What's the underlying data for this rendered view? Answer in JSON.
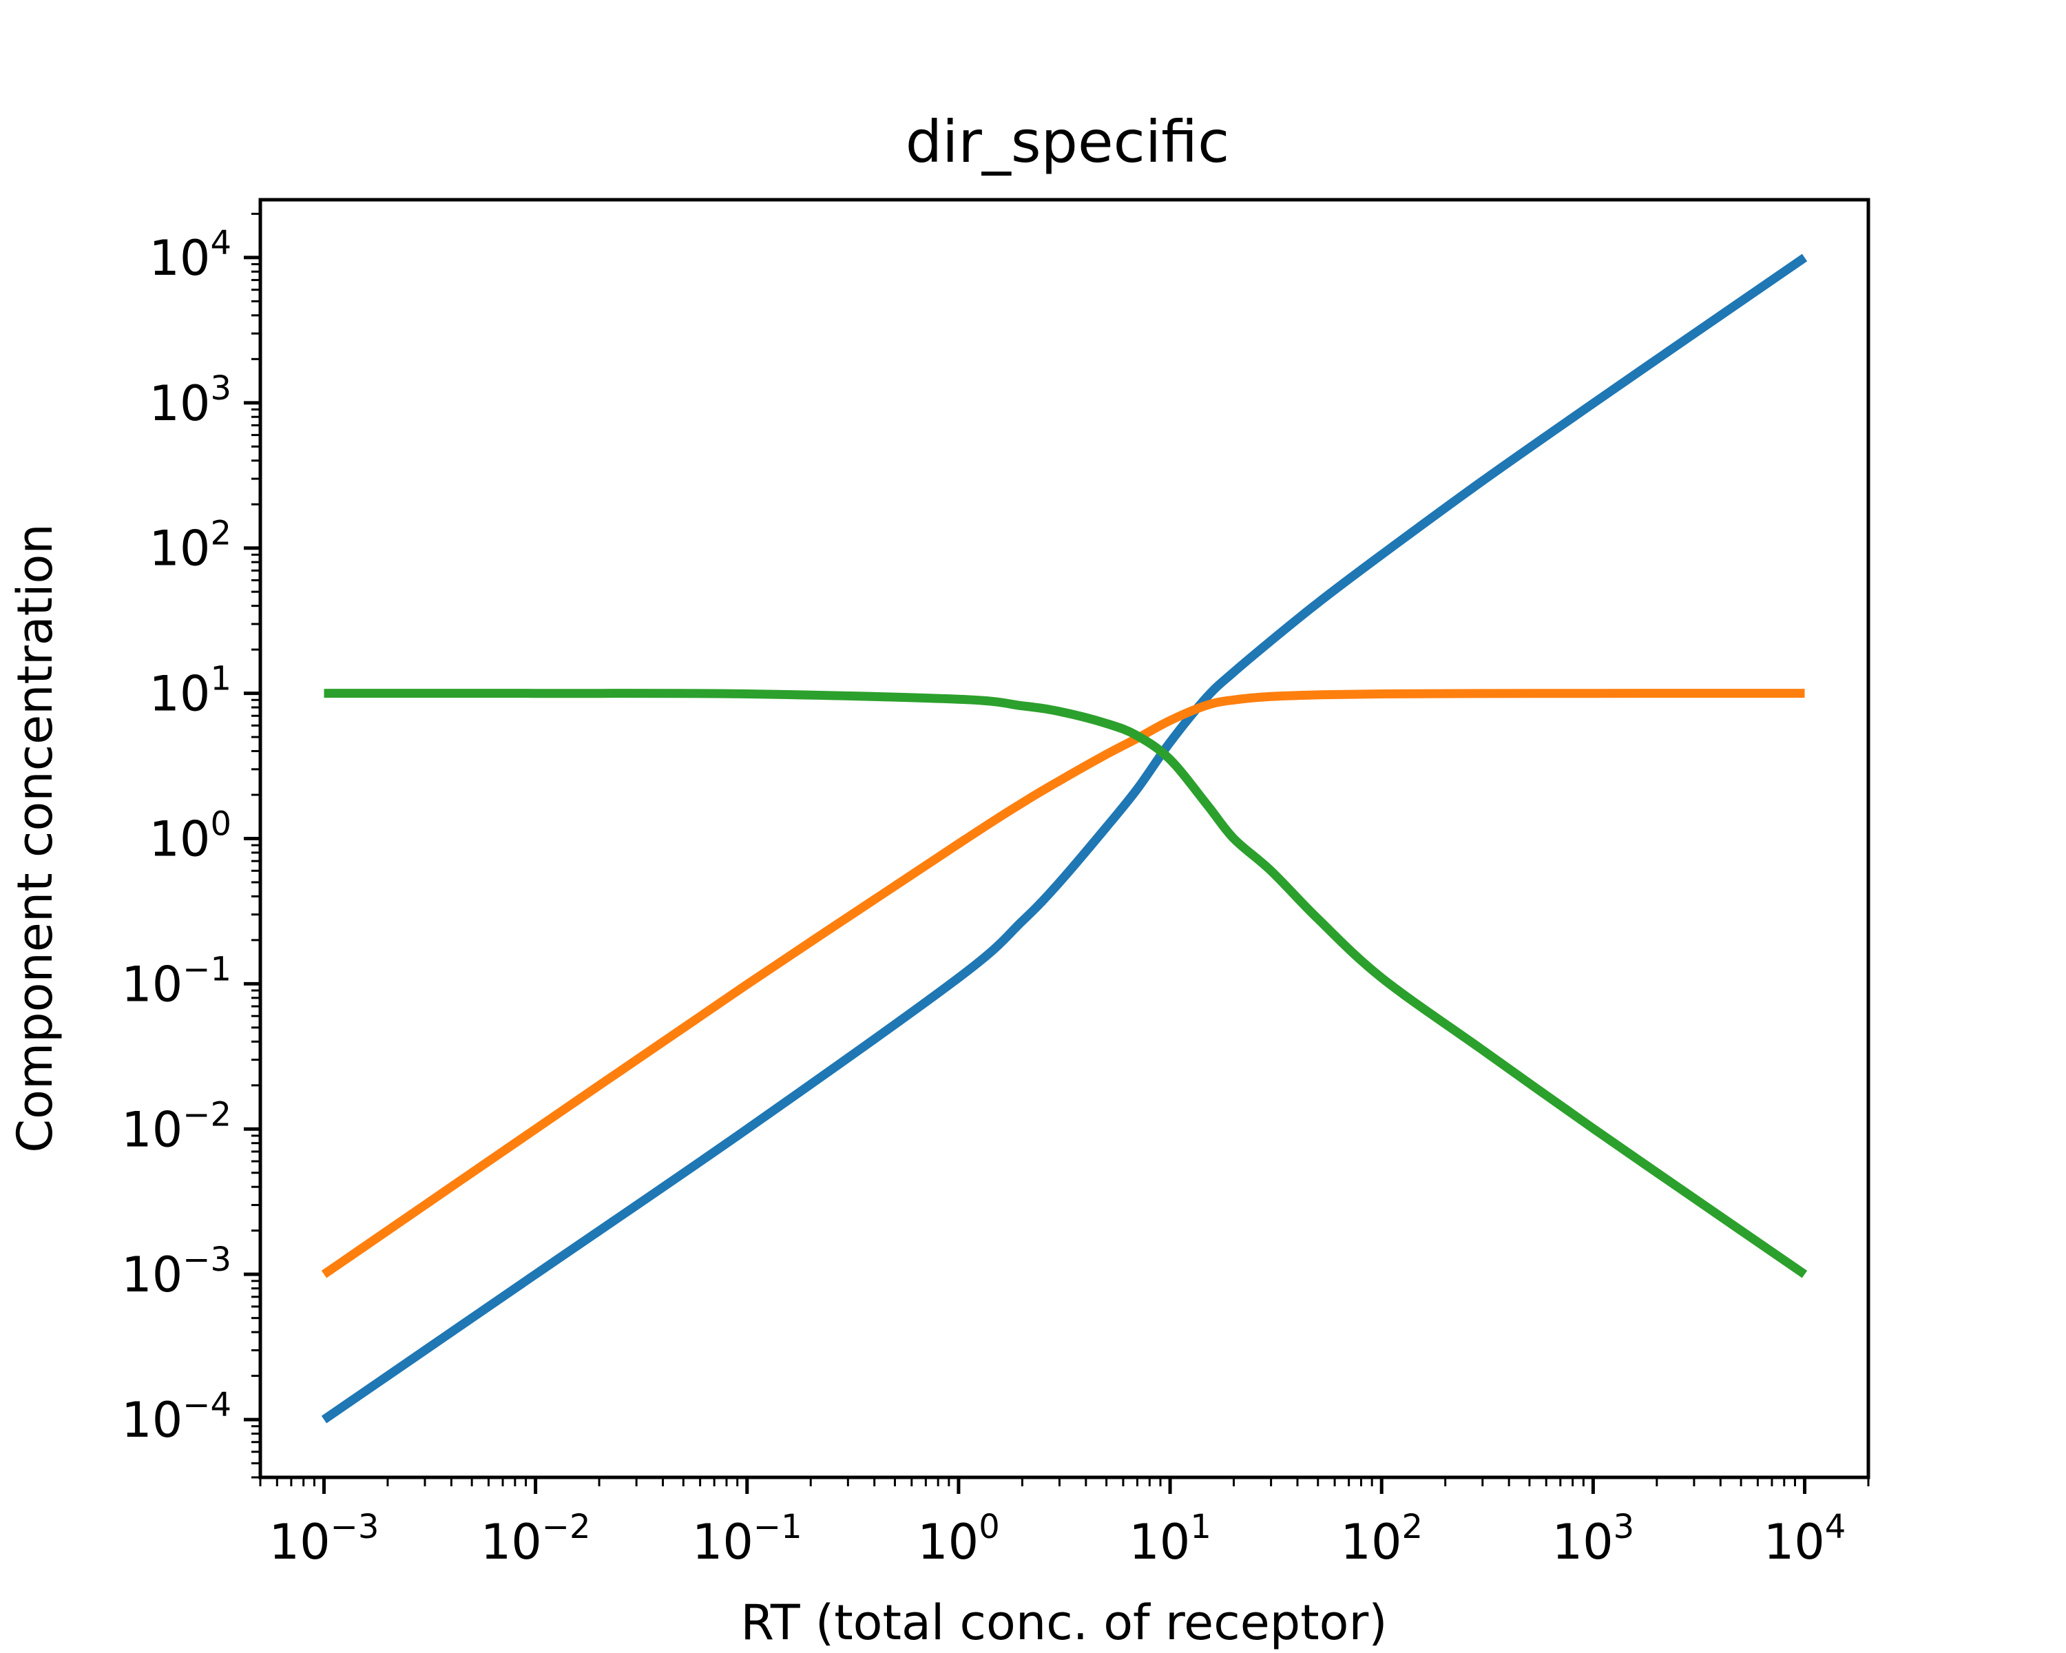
{
  "chart_data": {
    "type": "line",
    "title": "dir_specific",
    "xlabel": "RT (total conc. of receptor)",
    "ylabel": "Component concentration",
    "xscale": "log",
    "yscale": "log",
    "xlim": [
      0.0005,
      20000
    ],
    "ylim": [
      4e-05,
      25000
    ],
    "x_tick_exponents": [
      -3,
      -2,
      -1,
      0,
      1,
      2,
      3,
      4
    ],
    "y_tick_exponents": [
      -4,
      -3,
      -2,
      -1,
      0,
      1,
      2,
      3,
      4
    ],
    "tick_base": "10",
    "grid": false,
    "legend": false,
    "x": [
      0.001,
      0.01,
      0.1,
      1,
      2,
      3,
      5,
      7,
      10,
      15,
      20,
      30,
      50,
      100,
      300,
      1000,
      3000,
      10000
    ],
    "series": [
      {
        "color": "#1f77b4",
        "values": [
          0.0001,
          0.001,
          0.01,
          0.11,
          0.27,
          0.5,
          1.2,
          2.2,
          4.6,
          9.5,
          14,
          23,
          42,
          90,
          290,
          990,
          2990,
          9990
        ]
      },
      {
        "color": "#ff7f0e",
        "values": [
          0.001,
          0.01,
          0.099,
          0.92,
          1.76,
          2.5,
          3.8,
          4.9,
          6.5,
          8.3,
          9.0,
          9.5,
          9.75,
          9.9,
          9.97,
          9.99,
          10.0,
          10.0
        ]
      },
      {
        "color": "#2ca02c",
        "values": [
          10.0,
          9.99,
          9.9,
          9.1,
          8.2,
          7.5,
          6.2,
          5.1,
          3.5,
          1.7,
          1.0,
          0.6,
          0.28,
          0.11,
          0.035,
          0.0101,
          0.00334,
          0.001
        ]
      }
    ]
  }
}
